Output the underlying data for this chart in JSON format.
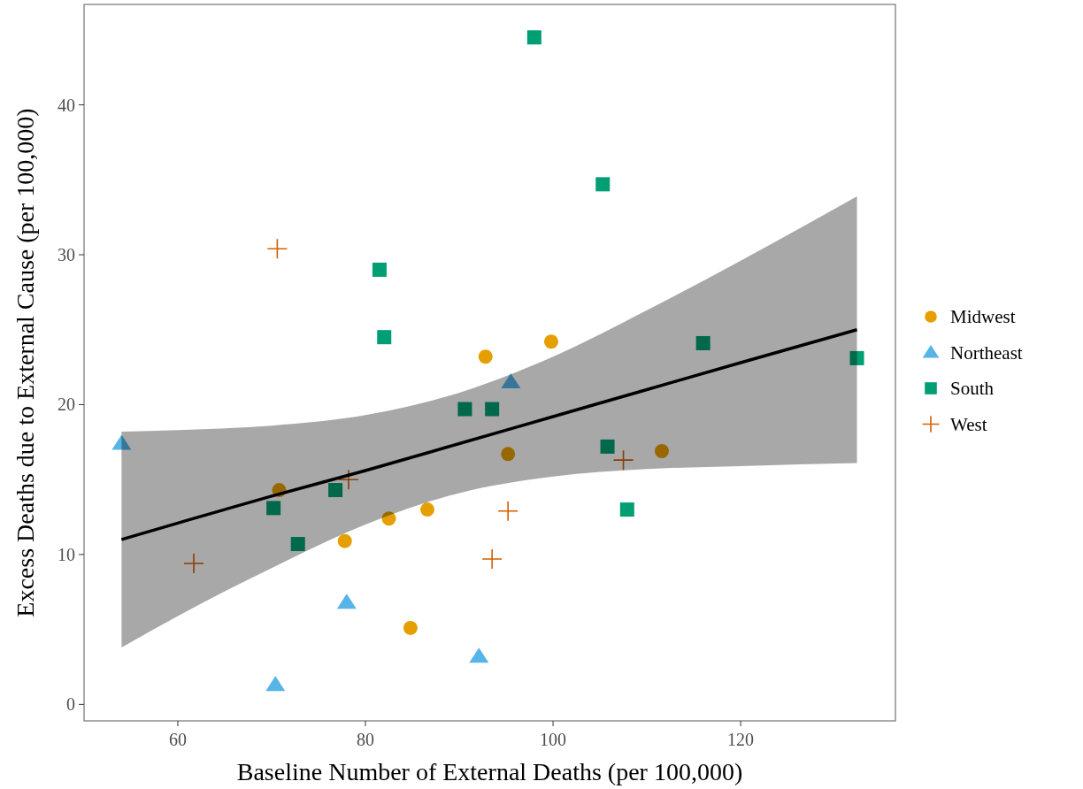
{
  "chart_data": {
    "type": "scatter",
    "xlabel": "Baseline Number of External Deaths (per 100,000)",
    "ylabel": "Excess Deaths due to External Cause (per 100,000)",
    "xlim": [
      50,
      136.5
    ],
    "ylim": [
      -1.1,
      46.7
    ],
    "xticks": [
      60,
      80,
      100,
      120
    ],
    "yticks": [
      0,
      10,
      20,
      30,
      40
    ],
    "grid": false,
    "legend": "right",
    "series": [
      {
        "name": "Midwest",
        "color": "#e69f00",
        "marker": "circle",
        "x": [
          70.8,
          77.8,
          82.5,
          86.6,
          84.8,
          92.8,
          99.8,
          95.2,
          111.6
        ],
        "values": [
          14.3,
          10.9,
          12.4,
          13.0,
          5.1,
          23.2,
          24.2,
          16.7,
          16.9
        ]
      },
      {
        "name": "Northeast",
        "color": "#56b4e9",
        "marker": "triangle",
        "x": [
          54.0,
          70.4,
          78.0,
          92.1,
          95.5
        ],
        "values": [
          17.4,
          1.3,
          6.8,
          3.2,
          21.5
        ]
      },
      {
        "name": "South",
        "color": "#009e73",
        "marker": "square",
        "x": [
          98.0,
          105.3,
          81.5,
          82.0,
          90.6,
          93.5,
          70.2,
          76.8,
          72.8,
          105.8,
          107.9,
          116.0,
          132.4
        ],
        "values": [
          44.5,
          34.7,
          29.0,
          24.5,
          19.7,
          19.7,
          13.1,
          14.3,
          10.7,
          17.2,
          13.0,
          24.1,
          23.1
        ]
      },
      {
        "name": "West",
        "color": "#d55e00",
        "marker": "cross",
        "x": [
          70.6,
          61.7,
          78.2,
          95.2,
          93.5,
          107.5
        ],
        "values": [
          30.4,
          9.4,
          15.0,
          12.9,
          9.7,
          16.3
        ]
      },
      {
        "type": "line",
        "color": "#000000",
        "marker": "none",
        "x": [
          54,
          60,
          70,
          80,
          90,
          100,
          110,
          120,
          132.4
        ],
        "values": [
          11.0,
          12.1,
          13.9,
          15.6,
          17.4,
          19.2,
          21.0,
          22.8,
          25.0
        ],
        "lower": [
          3.8,
          5.9,
          9.1,
          12.0,
          14.1,
          15.2,
          15.7,
          15.9,
          16.1
        ],
        "upper": [
          18.2,
          18.3,
          18.6,
          19.3,
          20.8,
          23.2,
          26.3,
          29.6,
          33.9
        ]
      }
    ]
  }
}
